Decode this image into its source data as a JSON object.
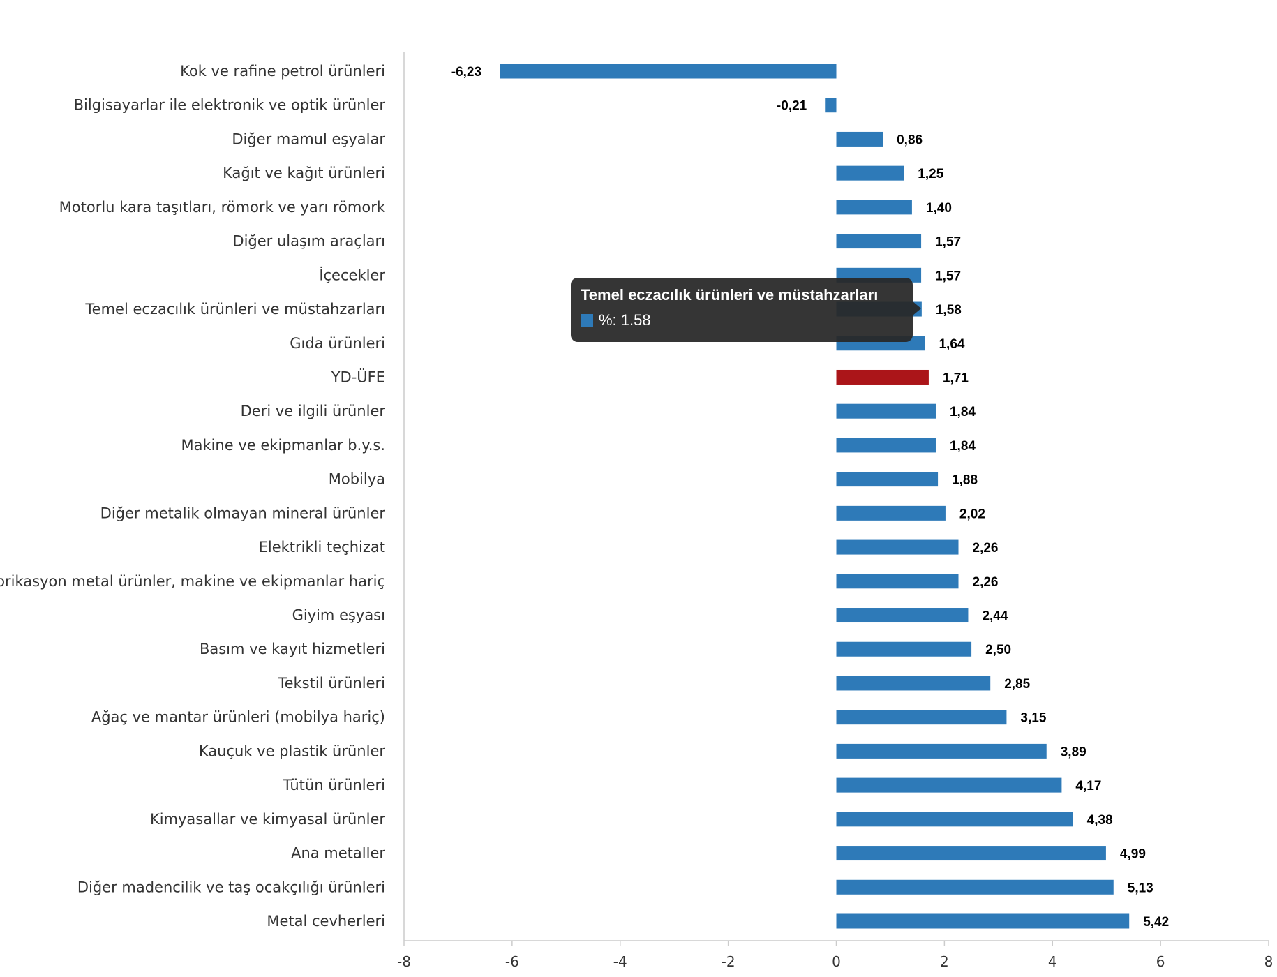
{
  "chart_data": {
    "type": "bar",
    "orientation": "horizontal",
    "categories": [
      "Kok ve rafine petrol ürünleri",
      "Bilgisayarlar ile elektronik ve optik ürünler",
      "Diğer mamul eşyalar",
      "Kağıt ve kağıt ürünleri",
      "Motorlu kara taşıtları, römork ve yarı römork",
      "Diğer ulaşım araçları",
      "İçecekler",
      "Temel eczacılık ürünleri ve müstahzarları",
      "Gıda ürünleri",
      "YD-ÜFE",
      "Deri ve ilgili ürünler",
      "Makine ve ekipmanlar b.y.s.",
      "Mobilya",
      "Diğer metalik olmayan mineral ürünler",
      "Elektrikli teçhizat",
      "Fabrikasyon metal ürünler, makine ve ekipmanlar hariç",
      "Giyim eşyası",
      "Basım ve kayıt hizmetleri",
      "Tekstil ürünleri",
      "Ağaç ve mantar ürünleri (mobilya hariç)",
      "Kauçuk ve plastik ürünler",
      "Tütün ürünleri",
      "Kimyasallar ve kimyasal ürünler",
      "Ana metaller",
      "Diğer madencilik ve taş ocakçılığı ürünleri",
      "Metal cevherleri"
    ],
    "values": [
      -6.23,
      -0.21,
      0.86,
      1.25,
      1.4,
      1.57,
      1.57,
      1.58,
      1.64,
      1.71,
      1.84,
      1.84,
      1.88,
      2.02,
      2.26,
      2.26,
      2.44,
      2.5,
      2.85,
      3.15,
      3.89,
      4.17,
      4.38,
      4.99,
      5.13,
      5.42
    ],
    "value_labels": [
      "-6,23",
      "-0,21",
      "0,86",
      "1,25",
      "1,40",
      "1,57",
      "1,57",
      "1,58",
      "1,64",
      "1,71",
      "1,84",
      "1,84",
      "1,88",
      "2,02",
      "2,26",
      "2,26",
      "2,44",
      "2,50",
      "2,85",
      "3,15",
      "3,89",
      "4,17",
      "4,38",
      "4,99",
      "5,13",
      "5,42"
    ],
    "xlim": [
      -8,
      8
    ],
    "xticks": [
      -8,
      -6,
      -4,
      -2,
      0,
      2,
      4,
      6,
      8
    ],
    "highlight_category": "YD-ÜFE",
    "colors": {
      "bar": "#2E7AB8",
      "highlight": "#AB1519"
    },
    "grid": false,
    "legend": "none"
  },
  "tooltip": {
    "title": "Temel eczacılık ürünleri ve müstahzarları",
    "row": "%: 1.58",
    "swatch_color": "#2E7AB8"
  }
}
